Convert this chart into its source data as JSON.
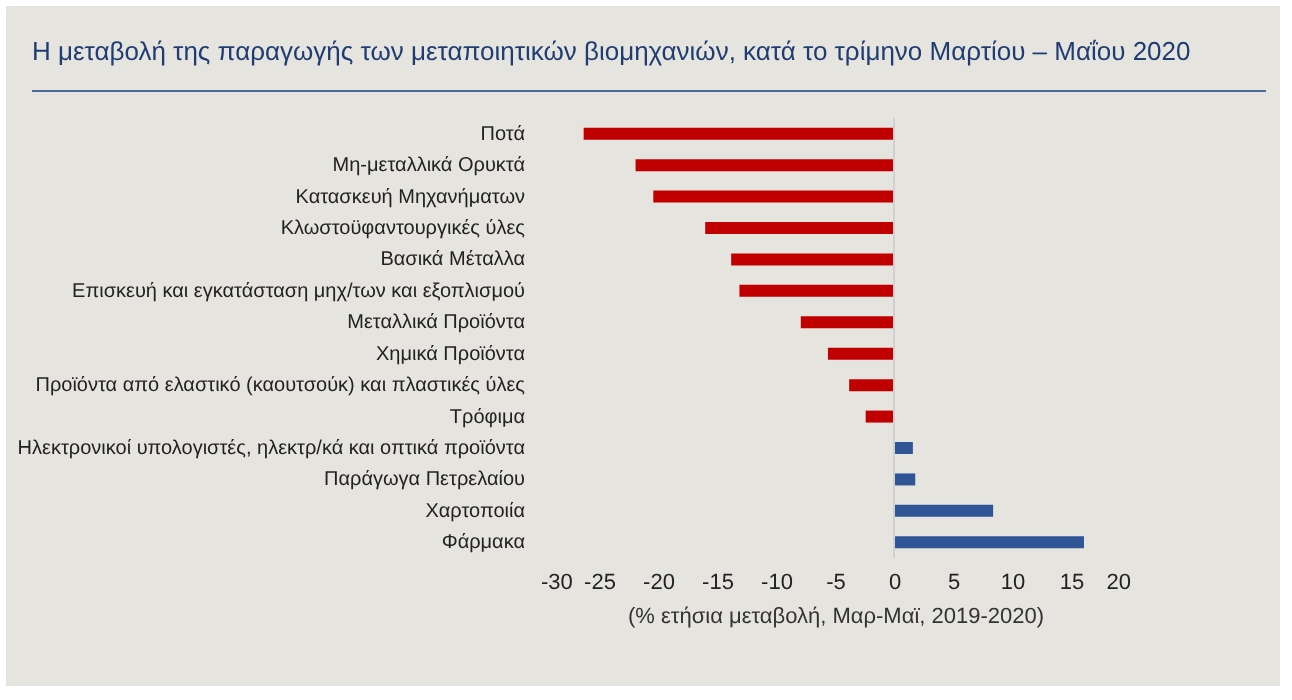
{
  "chart_data": {
    "type": "bar",
    "orientation": "horizontal",
    "title": "Η μεταβολή της παραγωγής των μεταποιητικών βιομηχανιών, κατά το τρίμηνο Μαρτίου – Μαΐου 2020",
    "xlabel": "(% ετήσια μεταβολή, Μαρ-Μαϊ, 2019-2020)",
    "categories": [
      "Ποτά",
      "Μη-μεταλλικά Ορυκτά",
      "Κατασκευή Μηχανήματων",
      "Κλωστοϋφαντουργικές ύλες",
      "Βασικά Μέταλλα",
      "Επισκευή και εγκατάσταση μηχ/των και εξοπλισμού",
      "Μεταλλικά Προϊόντα",
      "Χημικά Προϊόντα",
      "Προϊόντα  από ελαστικό (καουτσούκ) και πλαστικές ύλες",
      "Τρόφιμα",
      "Ηλεκτρονικοί υπολογιστές, ηλεκτρ/κά και οπτικά προϊόντα",
      "Παράγωγα Πετρελαίου",
      "Χαρτοποιία",
      "Φάρμακα"
    ],
    "values": [
      -26.3,
      -21.9,
      -20.4,
      -16.0,
      -13.8,
      -13.1,
      -7.9,
      -5.6,
      -3.8,
      -2.4,
      1.6,
      1.8,
      8.4,
      16.1
    ],
    "colors": [
      "#c00000",
      "#c00000",
      "#c00000",
      "#c00000",
      "#c00000",
      "#c00000",
      "#c00000",
      "#c00000",
      "#c00000",
      "#c00000",
      "#2f5597",
      "#2f5597",
      "#2f5597",
      "#2f5597"
    ],
    "xlim": [
      -30,
      20
    ],
    "xticks": [
      -30,
      -25,
      -20,
      -15,
      -10,
      -5,
      0,
      5,
      10,
      15,
      20
    ],
    "ref_lines": [
      {
        "axis": "x",
        "value": 0,
        "color": "#d0d0d0"
      }
    ],
    "grid": false
  }
}
